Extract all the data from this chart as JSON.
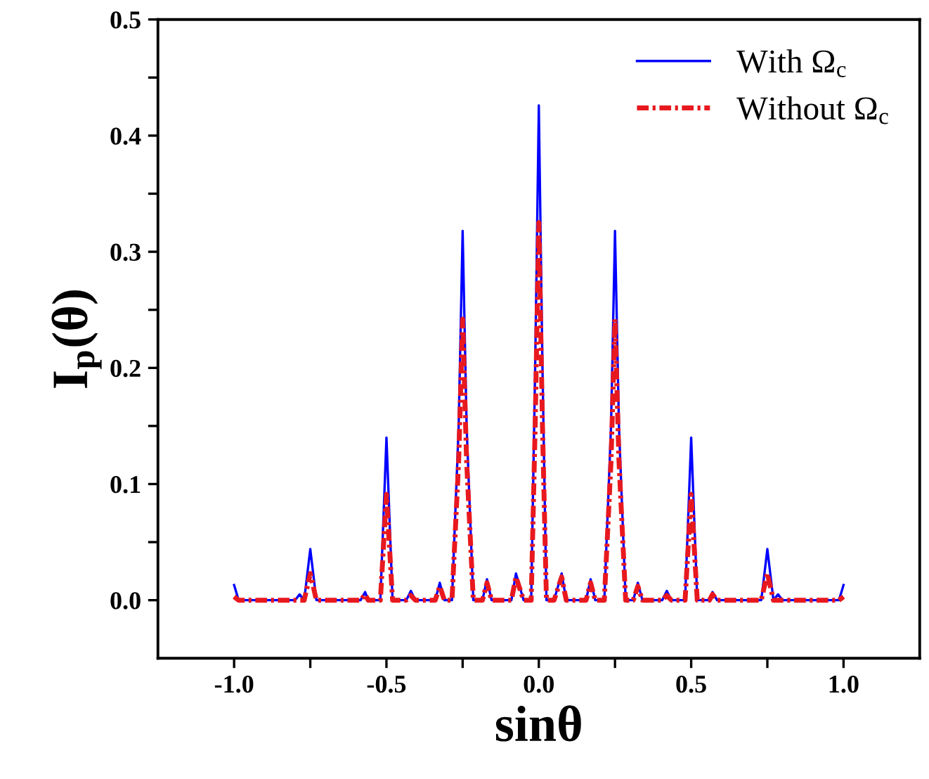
{
  "chart_data": {
    "type": "line",
    "xlabel": "sinθ",
    "ylabel": "I$_{p}$(θ)",
    "xlim": [
      -1.25,
      1.25
    ],
    "ylim": [
      -0.05,
      0.5
    ],
    "xticks": [
      {
        "value": -1.0,
        "label": "-1.0"
      },
      {
        "value": -0.75,
        "label": null
      },
      {
        "value": -0.5,
        "label": "-0.5"
      },
      {
        "value": -0.25,
        "label": null
      },
      {
        "value": 0,
        "label": "0.0"
      },
      {
        "value": 0.25,
        "label": null
      },
      {
        "value": 0.5,
        "label": "0.5"
      },
      {
        "value": 0.75,
        "label": null
      },
      {
        "value": 1.0,
        "label": "1.0"
      }
    ],
    "yticks": [
      {
        "value": 0,
        "label": "0.0"
      },
      {
        "value": 0.05,
        "label": null
      },
      {
        "value": 0.1,
        "label": "0.1"
      },
      {
        "value": 0.15,
        "label": null
      },
      {
        "value": 0.2,
        "label": "0.2"
      },
      {
        "value": 0.25,
        "label": null
      },
      {
        "value": 0.3,
        "label": "0.3"
      },
      {
        "value": 0.35,
        "label": null
      },
      {
        "value": 0.4,
        "label": "0.4"
      },
      {
        "value": 0.45,
        "label": null
      },
      {
        "value": 0.5,
        "label": "0.5"
      }
    ],
    "grid": false,
    "legend": "top right",
    "marker": "none",
    "series": [
      {
        "name": "With Ω$_{c}$",
        "color": "#0000ff",
        "line_style": "solid",
        "x": [
          -1.0,
          -0.985,
          -0.8,
          -0.785,
          -0.77,
          -0.75,
          -0.73,
          -0.585,
          -0.57,
          -0.56,
          -0.52,
          -0.5,
          -0.48,
          -0.435,
          -0.42,
          -0.405,
          -0.34,
          -0.325,
          -0.31,
          -0.285,
          -0.263,
          -0.25,
          -0.237,
          -0.215,
          -0.185,
          -0.17,
          -0.155,
          -0.09,
          -0.075,
          -0.05,
          -0.025,
          -0.012,
          0,
          0.012,
          0.025,
          0.05,
          0.075,
          0.09,
          0.155,
          0.17,
          0.185,
          0.215,
          0.237,
          0.25,
          0.263,
          0.285,
          0.31,
          0.325,
          0.34,
          0.405,
          0.42,
          0.435,
          0.48,
          0.5,
          0.52,
          0.56,
          0.57,
          0.585,
          0.73,
          0.75,
          0.77,
          0.785,
          0.8,
          0.985,
          1.0
        ],
        "values": [
          0.013,
          0,
          0,
          0.005,
          0,
          0.044,
          0,
          0,
          0.007,
          0,
          0,
          0.14,
          0,
          0,
          0.008,
          0,
          0,
          0.015,
          0,
          0,
          0.15,
          0.318,
          0.15,
          0,
          0,
          0.018,
          0,
          0,
          0.023,
          0,
          0,
          0.2,
          0.426,
          0.2,
          0,
          0,
          0.023,
          0,
          0,
          0.018,
          0,
          0,
          0.15,
          0.318,
          0.15,
          0,
          0,
          0.015,
          0,
          0,
          0.008,
          0,
          0,
          0.14,
          0,
          0,
          0.007,
          0,
          0,
          0.044,
          0,
          0.005,
          0,
          0,
          0.013
        ]
      },
      {
        "name": "Without Ω$_{c}$",
        "color": "#e8191e",
        "line_style": "dashdot",
        "x": [
          -1.0,
          -0.985,
          -0.77,
          -0.75,
          -0.73,
          -0.585,
          -0.57,
          -0.56,
          -0.52,
          -0.5,
          -0.48,
          -0.435,
          -0.42,
          -0.405,
          -0.34,
          -0.325,
          -0.31,
          -0.285,
          -0.263,
          -0.25,
          -0.237,
          -0.215,
          -0.185,
          -0.17,
          -0.155,
          -0.09,
          -0.075,
          -0.05,
          -0.025,
          -0.012,
          0,
          0.012,
          0.025,
          0.05,
          0.075,
          0.09,
          0.155,
          0.17,
          0.185,
          0.215,
          0.237,
          0.25,
          0.263,
          0.285,
          0.31,
          0.325,
          0.34,
          0.405,
          0.42,
          0.435,
          0.48,
          0.5,
          0.52,
          0.56,
          0.57,
          0.585,
          0.73,
          0.75,
          0.77,
          0.985,
          1.0
        ],
        "values": [
          0.003,
          0,
          0,
          0.023,
          0,
          0,
          0.005,
          0,
          0,
          0.091,
          0,
          0,
          0.004,
          0,
          0,
          0.012,
          0,
          0,
          0.12,
          0.242,
          0.12,
          0,
          0,
          0.015,
          0,
          0,
          0.02,
          0,
          0,
          0.15,
          0.325,
          0.15,
          0,
          0,
          0.02,
          0,
          0,
          0.015,
          0,
          0,
          0.12,
          0.242,
          0.12,
          0,
          0,
          0.012,
          0,
          0,
          0.004,
          0,
          0,
          0.091,
          0,
          0,
          0.005,
          0,
          0,
          0.023,
          0,
          0,
          0.003
        ]
      }
    ]
  }
}
